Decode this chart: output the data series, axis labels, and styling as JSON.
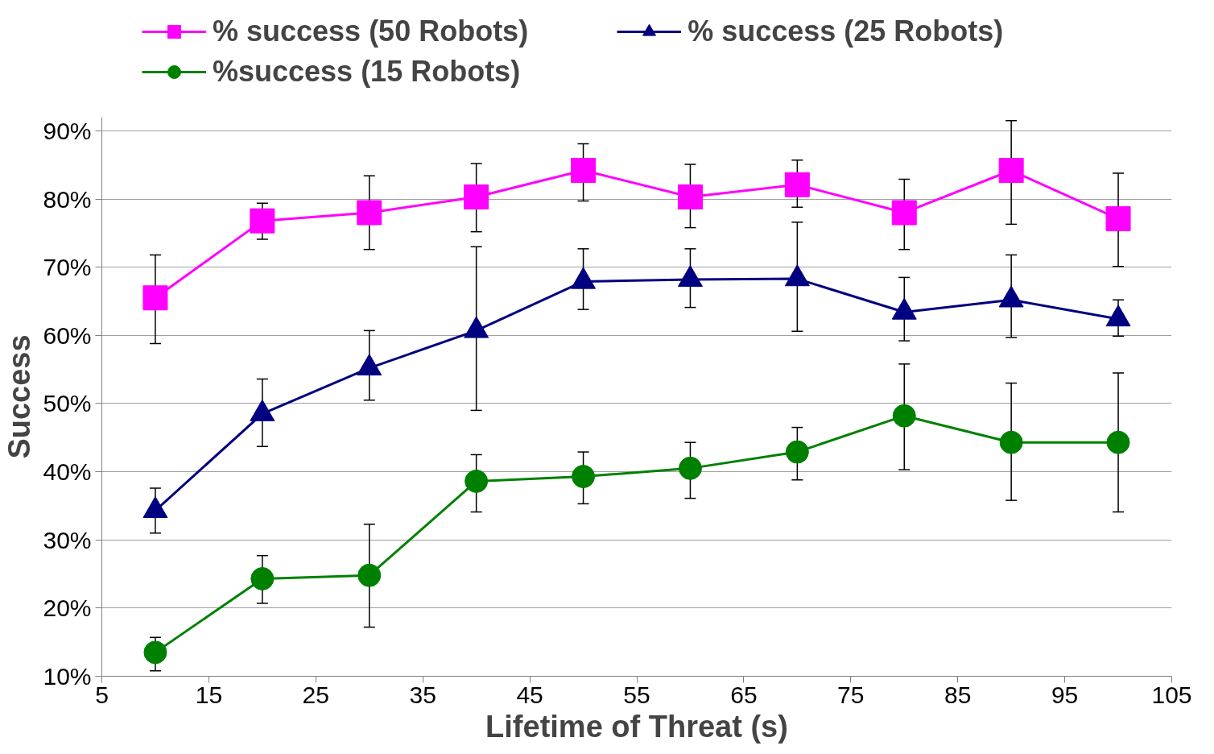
{
  "chart_data": {
    "type": "line",
    "xlabel": "Lifetime of Threat (s)",
    "ylabel": "Success",
    "x": [
      10,
      20,
      30,
      40,
      50,
      60,
      70,
      80,
      90,
      100
    ],
    "xlim": [
      5,
      105
    ],
    "xticks": [
      5,
      15,
      25,
      35,
      45,
      55,
      65,
      75,
      85,
      95,
      105
    ],
    "ylim": [
      10,
      92
    ],
    "yticks": [
      {
        "value": 10,
        "label": "10%"
      },
      {
        "value": 20,
        "label": "20%"
      },
      {
        "value": 30,
        "label": "30%"
      },
      {
        "value": 40,
        "label": "40%"
      },
      {
        "value": 50,
        "label": "50%"
      },
      {
        "value": 60,
        "label": "60%"
      },
      {
        "value": 70,
        "label": "70%"
      },
      {
        "value": 80,
        "label": "80%"
      },
      {
        "value": 90,
        "label": "90%"
      }
    ],
    "grid": "y",
    "legend": "top",
    "line_style": "solid",
    "series": [
      {
        "name": "% success (50 Robots)",
        "color": "#ff00ff",
        "marker": "square",
        "values": [
          65.5,
          76.8,
          78,
          80.3,
          84.2,
          80.3,
          82.1,
          78,
          84.2,
          77.1
        ],
        "errors": [
          [
            58.8,
            71.8
          ],
          [
            74.1,
            79.4
          ],
          [
            72.6,
            83.4
          ],
          [
            75.2,
            85.2
          ],
          [
            79.7,
            88.1
          ],
          [
            75.8,
            85.1
          ],
          [
            78.8,
            85.7
          ],
          [
            72.6,
            82.9
          ],
          [
            76.3,
            91.5
          ],
          [
            70.1,
            83.8
          ]
        ]
      },
      {
        "name": "% success (25 Robots)",
        "color": "#000080",
        "marker": "triangle",
        "values": [
          34.3,
          48.5,
          55.2,
          60.7,
          67.9,
          68.2,
          68.3,
          63.4,
          65.2,
          62.4
        ],
        "errors": [
          [
            31.0,
            37.6
          ],
          [
            43.7,
            53.6
          ],
          [
            50.5,
            60.7
          ],
          [
            49.0,
            73.0
          ],
          [
            63.8,
            72.7
          ],
          [
            64.1,
            72.7
          ],
          [
            60.6,
            76.6
          ],
          [
            59.2,
            68.5
          ],
          [
            59.7,
            71.8
          ],
          [
            59.9,
            65.2
          ]
        ]
      },
      {
        "name": "%success (15 Robots)",
        "color": "#008000",
        "marker": "circle",
        "values": [
          13.5,
          24.3,
          24.8,
          38.6,
          39.3,
          40.5,
          42.9,
          48.2,
          44.3,
          44.3
        ],
        "errors": [
          [
            10.8,
            15.7
          ],
          [
            20.7,
            27.7
          ],
          [
            17.2,
            32.3
          ],
          [
            34.1,
            42.5
          ],
          [
            35.3,
            42.9
          ],
          [
            36.1,
            44.3
          ],
          [
            38.8,
            46.5
          ],
          [
            40.3,
            55.8
          ],
          [
            35.8,
            53.0
          ],
          [
            34.1,
            54.5
          ]
        ]
      }
    ]
  }
}
